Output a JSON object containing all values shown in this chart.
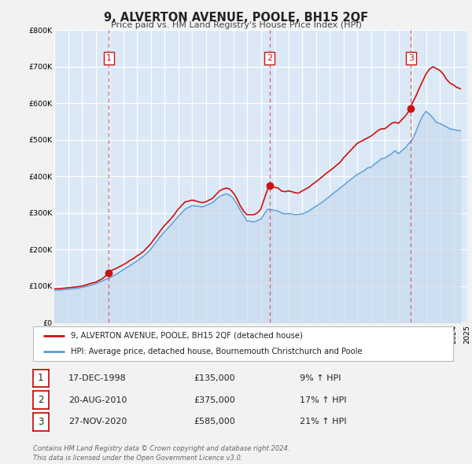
{
  "title": "9, ALVERTON AVENUE, POOLE, BH15 2QF",
  "subtitle": "Price paid vs. HM Land Registry's House Price Index (HPI)",
  "chart_bg_color": "#dbe8f5",
  "fig_bg_color": "#f2f2f2",
  "panel_bg_color": "#ffffff",
  "red_line_color": "#cc1111",
  "blue_line_color": "#5b9bd5",
  "blue_fill_color": "#c5d9ed",
  "grid_color": "#ffffff",
  "ylim": [
    0,
    800000
  ],
  "yticks": [
    0,
    100000,
    200000,
    300000,
    400000,
    500000,
    600000,
    700000,
    800000
  ],
  "xmin": 1995,
  "xmax": 2025,
  "sale_points": [
    {
      "year": 1998.96,
      "price": 135000,
      "label": "1"
    },
    {
      "year": 2010.64,
      "price": 375000,
      "label": "2"
    },
    {
      "year": 2020.91,
      "price": 585000,
      "label": "3"
    }
  ],
  "vline_years": [
    1998.96,
    2010.64,
    2020.91
  ],
  "legend_line1": "9, ALVERTON AVENUE, POOLE, BH15 2QF (detached house)",
  "legend_line2": "HPI: Average price, detached house, Bournemouth Christchurch and Poole",
  "table_rows": [
    {
      "num": "1",
      "date": "17-DEC-1998",
      "price": "£135,000",
      "pct": "9% ↑ HPI"
    },
    {
      "num": "2",
      "date": "20-AUG-2010",
      "price": "£375,000",
      "pct": "17% ↑ HPI"
    },
    {
      "num": "3",
      "date": "27-NOV-2020",
      "price": "£585,000",
      "pct": "21% ↑ HPI"
    }
  ],
  "footer": "Contains HM Land Registry data © Crown copyright and database right 2024.\nThis data is licensed under the Open Government Licence v3.0.",
  "red_hpi_data": {
    "years": [
      1995.0,
      1995.25,
      1995.5,
      1995.75,
      1996.0,
      1996.25,
      1996.5,
      1996.75,
      1997.0,
      1997.25,
      1997.5,
      1997.75,
      1998.0,
      1998.25,
      1998.5,
      1998.75,
      1998.96,
      1999.0,
      1999.25,
      1999.5,
      1999.75,
      2000.0,
      2000.25,
      2000.5,
      2000.75,
      2001.0,
      2001.25,
      2001.5,
      2001.75,
      2002.0,
      2002.25,
      2002.5,
      2002.75,
      2003.0,
      2003.25,
      2003.5,
      2003.75,
      2004.0,
      2004.25,
      2004.5,
      2004.75,
      2005.0,
      2005.25,
      2005.5,
      2005.75,
      2006.0,
      2006.25,
      2006.5,
      2006.75,
      2007.0,
      2007.25,
      2007.5,
      2007.75,
      2008.0,
      2008.25,
      2008.5,
      2008.75,
      2009.0,
      2009.25,
      2009.5,
      2009.75,
      2010.0,
      2010.25,
      2010.5,
      2010.64,
      2010.75,
      2011.0,
      2011.25,
      2011.5,
      2011.75,
      2012.0,
      2012.25,
      2012.5,
      2012.75,
      2013.0,
      2013.25,
      2013.5,
      2013.75,
      2014.0,
      2014.25,
      2014.5,
      2014.75,
      2015.0,
      2015.25,
      2015.5,
      2015.75,
      2016.0,
      2016.25,
      2016.5,
      2016.75,
      2017.0,
      2017.25,
      2017.5,
      2017.75,
      2018.0,
      2018.25,
      2018.5,
      2018.75,
      2019.0,
      2019.25,
      2019.5,
      2019.75,
      2020.0,
      2020.25,
      2020.5,
      2020.75,
      2020.91,
      2021.0,
      2021.25,
      2021.5,
      2021.75,
      2022.0,
      2022.25,
      2022.5,
      2022.75,
      2023.0,
      2023.25,
      2023.5,
      2023.75,
      2024.0,
      2024.25,
      2024.5
    ],
    "prices": [
      92000,
      92500,
      93000,
      94000,
      95000,
      96000,
      97000,
      98000,
      100000,
      102000,
      105000,
      108000,
      110000,
      115000,
      120000,
      128000,
      135000,
      140000,
      144000,
      148000,
      153000,
      158000,
      163000,
      170000,
      175000,
      182000,
      188000,
      195000,
      205000,
      215000,
      228000,
      240000,
      253000,
      265000,
      275000,
      285000,
      297000,
      310000,
      320000,
      330000,
      332000,
      335000,
      333000,
      330000,
      328000,
      330000,
      335000,
      340000,
      350000,
      360000,
      365000,
      368000,
      365000,
      355000,
      340000,
      320000,
      305000,
      295000,
      295000,
      295000,
      300000,
      310000,
      338000,
      365000,
      375000,
      372000,
      370000,
      368000,
      360000,
      358000,
      360000,
      358000,
      355000,
      354000,
      360000,
      365000,
      370000,
      378000,
      385000,
      392000,
      400000,
      408000,
      415000,
      422000,
      430000,
      438000,
      450000,
      460000,
      470000,
      480000,
      490000,
      495000,
      500000,
      505000,
      510000,
      517000,
      525000,
      530000,
      530000,
      537000,
      545000,
      548000,
      545000,
      555000,
      565000,
      578000,
      585000,
      600000,
      618000,
      640000,
      660000,
      680000,
      693000,
      700000,
      695000,
      690000,
      680000,
      665000,
      655000,
      650000,
      643000,
      640000
    ]
  },
  "blue_hpi_data": {
    "years": [
      1995.0,
      1995.25,
      1995.5,
      1995.75,
      1996.0,
      1996.25,
      1996.5,
      1996.75,
      1997.0,
      1997.25,
      1997.5,
      1997.75,
      1998.0,
      1998.25,
      1998.5,
      1998.75,
      1999.0,
      1999.25,
      1999.5,
      1999.75,
      2000.0,
      2000.25,
      2000.5,
      2000.75,
      2001.0,
      2001.25,
      2001.5,
      2001.75,
      2002.0,
      2002.25,
      2002.5,
      2002.75,
      2003.0,
      2003.25,
      2003.5,
      2003.75,
      2004.0,
      2004.25,
      2004.5,
      2004.75,
      2005.0,
      2005.25,
      2005.5,
      2005.75,
      2006.0,
      2006.25,
      2006.5,
      2006.75,
      2007.0,
      2007.25,
      2007.5,
      2007.75,
      2008.0,
      2008.25,
      2008.5,
      2008.75,
      2009.0,
      2009.25,
      2009.5,
      2009.75,
      2010.0,
      2010.25,
      2010.5,
      2010.75,
      2011.0,
      2011.25,
      2011.5,
      2011.75,
      2012.0,
      2012.25,
      2012.5,
      2012.75,
      2013.0,
      2013.25,
      2013.5,
      2013.75,
      2014.0,
      2014.25,
      2014.5,
      2014.75,
      2015.0,
      2015.25,
      2015.5,
      2015.75,
      2016.0,
      2016.25,
      2016.5,
      2016.75,
      2017.0,
      2017.25,
      2017.5,
      2017.75,
      2018.0,
      2018.25,
      2018.5,
      2018.75,
      2019.0,
      2019.25,
      2019.5,
      2019.75,
      2020.0,
      2020.25,
      2020.5,
      2020.75,
      2021.0,
      2021.25,
      2021.5,
      2021.75,
      2022.0,
      2022.25,
      2022.5,
      2022.75,
      2023.0,
      2023.25,
      2023.5,
      2023.75,
      2024.0,
      2024.25,
      2024.5
    ],
    "prices": [
      88000,
      88500,
      89000,
      90000,
      91000,
      92000,
      93000,
      94000,
      96000,
      98000,
      100000,
      103000,
      106000,
      110000,
      114000,
      118000,
      122000,
      127000,
      132000,
      138000,
      144000,
      150000,
      156000,
      162000,
      168000,
      175000,
      182000,
      191000,
      200000,
      213000,
      225000,
      237000,
      248000,
      258000,
      268000,
      279000,
      290000,
      300000,
      310000,
      315000,
      320000,
      319000,
      318000,
      316000,
      320000,
      324000,
      328000,
      337000,
      345000,
      349000,
      352000,
      348000,
      340000,
      325000,
      308000,
      293000,
      278000,
      277000,
      275000,
      279000,
      283000,
      297000,
      310000,
      309000,
      307000,
      305000,
      300000,
      297000,
      298000,
      297000,
      295000,
      296000,
      297000,
      301000,
      305000,
      312000,
      318000,
      324000,
      330000,
      338000,
      345000,
      353000,
      360000,
      368000,
      375000,
      383000,
      390000,
      398000,
      405000,
      410000,
      415000,
      423000,
      425000,
      433000,
      440000,
      448000,
      450000,
      456000,
      462000,
      470000,
      462000,
      470000,
      478000,
      490000,
      500000,
      520000,
      545000,
      565000,
      578000,
      570000,
      560000,
      548000,
      545000,
      540000,
      535000,
      530000,
      528000,
      526000,
      525000
    ]
  }
}
